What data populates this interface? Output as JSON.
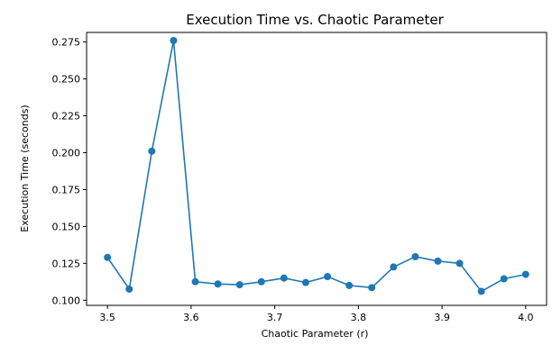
{
  "chart_data": {
    "type": "line",
    "title": "Execution Time vs. Chaotic Parameter",
    "xlabel": "Chaotic Parameter (r)",
    "ylabel": "Execution Time (seconds)",
    "xlim": [
      3.475,
      4.025
    ],
    "ylim": [
      0.0965,
      0.2815
    ],
    "xticks": [
      3.5,
      3.6,
      3.7,
      3.8,
      3.9,
      4.0
    ],
    "xtick_labels": [
      "3.5",
      "3.6",
      "3.7",
      "3.8",
      "3.9",
      "4.0"
    ],
    "yticks": [
      0.1,
      0.125,
      0.15,
      0.175,
      0.2,
      0.225,
      0.25,
      0.275
    ],
    "ytick_labels": [
      "0.100",
      "0.125",
      "0.150",
      "0.175",
      "0.200",
      "0.225",
      "0.250",
      "0.275"
    ],
    "grid": false,
    "series": [
      {
        "color": "#1f77b4",
        "marker": "circle",
        "x": [
          3.5,
          3.526,
          3.553,
          3.579,
          3.605,
          3.632,
          3.658,
          3.684,
          3.711,
          3.737,
          3.763,
          3.789,
          3.816,
          3.842,
          3.868,
          3.895,
          3.921,
          3.947,
          3.974,
          4.0
        ],
        "y": [
          0.129,
          0.1075,
          0.201,
          0.276,
          0.1125,
          0.111,
          0.1105,
          0.1125,
          0.115,
          0.112,
          0.116,
          0.11,
          0.1085,
          0.1225,
          0.1295,
          0.1265,
          0.125,
          0.106,
          0.1145,
          0.1175
        ]
      }
    ]
  }
}
